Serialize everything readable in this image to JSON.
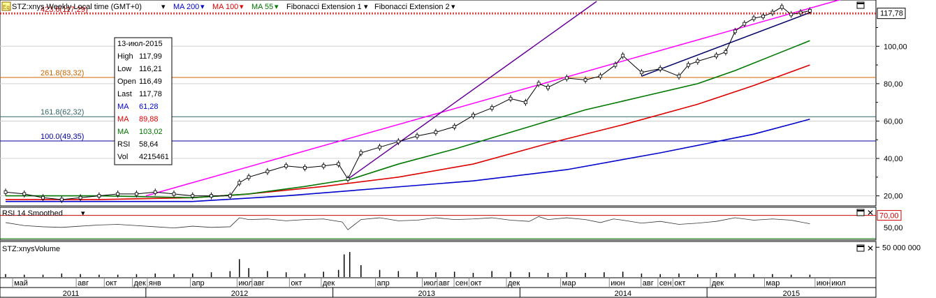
{
  "header": {
    "symbol_icon": "Eq",
    "symbol": "STZ:xnys Weekly Local time (GMT+0)",
    "ma200_label": "MA 200",
    "ma100_label": "MA 100",
    "ma55_label": "MA 55",
    "fib1_label": "Fibonacci Extension 1",
    "fib2_label": "Fibonacci Extension 2"
  },
  "colors": {
    "price": "#000000",
    "ma200": "#0000cc",
    "ma100": "#dd0000",
    "ma55": "#007700",
    "fib_line": "#ff00ff",
    "trend_purple": "#660099",
    "trend_navy": "#000066",
    "current_price_line": "#cc0000",
    "fib_423": "#cc0000",
    "fib_261": "#cc6600",
    "fib_161": "#336666",
    "fib_100": "#000099"
  },
  "tooltip": {
    "date": "13-июл-2015",
    "rows": [
      {
        "label": "High",
        "value": "117,99",
        "color": "#000000"
      },
      {
        "label": "Low",
        "value": "116,21",
        "color": "#000000"
      },
      {
        "label": "Open",
        "value": "116,49",
        "color": "#000000"
      },
      {
        "label": "Last",
        "value": "117,78",
        "color": "#000000"
      },
      {
        "label": "MA",
        "value": "61,28",
        "color": "#0000cc"
      },
      {
        "label": "MA",
        "value": "89,88",
        "color": "#dd0000"
      },
      {
        "label": "MA",
        "value": "103,02",
        "color": "#007700"
      },
      {
        "label": "RSI",
        "value": "58,64",
        "color": "#000000"
      },
      {
        "label": "Vol",
        "value": "4215461",
        "color": "#000000"
      }
    ]
  },
  "fib_levels": [
    {
      "label": "423.6(117,29)",
      "value": 117.29,
      "color": "#cc0000"
    },
    {
      "label": "261.8(83,32)",
      "value": 83.32,
      "color": "#cc6600"
    },
    {
      "label": "161.8(62,32)",
      "value": 62.32,
      "color": "#336666"
    },
    {
      "label": "100.0(49,35)",
      "value": 49.35,
      "color": "#000099"
    }
  ],
  "current_price_label": "117,78",
  "rsi_panel": {
    "title": "RSI 14 Smoothed",
    "level_label": "70,00",
    "mid_label": "50,00"
  },
  "volume_panel": {
    "title": "STZ:xnysVolume",
    "tick_label": "50 000 000"
  },
  "chart_data": {
    "type": "line",
    "price_axis": {
      "min": 15,
      "max": 124,
      "ticks": [
        20,
        40,
        60,
        80,
        100
      ],
      "tick_labels": [
        "20,00",
        "40,00",
        "60,00",
        "80,00",
        "100,00"
      ]
    },
    "time_axis": {
      "months": [
        "май",
        "авг",
        "окт",
        "дек",
        "янв",
        "апр",
        "июл",
        "авг",
        "окт",
        "дек",
        "апр",
        "июл",
        "авг",
        "сен",
        "окт",
        "дек",
        "мар",
        "июн",
        "авг",
        "сен",
        "окт",
        "дек",
        "мар",
        "июн",
        "июл"
      ],
      "month_pos": [
        0.6,
        4.0,
        5.5,
        7.0,
        7.8,
        10.1,
        12.6,
        13.4,
        15.4,
        17.1,
        20.0,
        22.5,
        23.3,
        24.2,
        25.0,
        27.0,
        29.9,
        32.5,
        34.2,
        35.1,
        35.9,
        37.9,
        40.8,
        43.5,
        44.3
      ],
      "years": [
        "2011",
        "2012",
        "2013",
        "2014",
        "2015"
      ],
      "year_pos": [
        3.5,
        12.5,
        22.5,
        33.0,
        42.0
      ],
      "year_dividers": [
        7.5,
        17.5,
        27.5,
        37.5
      ],
      "range": [
        0,
        45
      ]
    },
    "price_series": {
      "x": [
        0,
        1,
        2,
        3,
        4,
        5,
        6,
        7,
        8,
        9,
        10,
        11,
        12,
        12.5,
        13,
        14,
        15,
        16,
        17,
        17.8,
        18.3,
        19,
        20,
        21,
        22,
        23,
        24,
        25,
        26,
        27,
        27.8,
        28.5,
        29,
        30,
        31,
        31.8,
        32.6,
        33,
        34,
        35,
        36,
        36.5,
        37,
        38,
        38.5,
        39,
        39.5,
        40,
        40.5,
        41,
        41.5,
        42,
        42.5,
        43
      ],
      "y": [
        22,
        21,
        19,
        18,
        19,
        20,
        21,
        21,
        22,
        21,
        20,
        20,
        20,
        27,
        30,
        33,
        36,
        35,
        36,
        37,
        29,
        43,
        46,
        49,
        52,
        54,
        57,
        63,
        67,
        72,
        70,
        80,
        78,
        83,
        82,
        84,
        90,
        95,
        86,
        88,
        84,
        90,
        92,
        95,
        97,
        108,
        112,
        115,
        116,
        118,
        121,
        117,
        118,
        119
      ]
    },
    "ma_series": [
      {
        "name": "MA 200",
        "color": "#0000cc",
        "x": [
          0,
          5,
          10,
          15,
          20,
          25,
          30,
          35,
          40,
          43
        ],
        "y": [
          17,
          17,
          17,
          20,
          24,
          28,
          34,
          43,
          53,
          61
        ]
      },
      {
        "name": "MA 100",
        "color": "#dd0000",
        "x": [
          0,
          5,
          10,
          13,
          17,
          21,
          25,
          29,
          33,
          37,
          40,
          43
        ],
        "y": [
          18,
          18,
          19,
          21,
          25,
          30,
          37,
          48,
          58,
          69,
          79,
          90
        ]
      },
      {
        "name": "MA 55",
        "color": "#007700",
        "x": [
          0,
          5,
          10,
          13,
          16,
          18.5,
          21,
          24,
          28,
          31,
          34,
          37,
          39,
          41,
          43
        ],
        "y": [
          20,
          20,
          19,
          21,
          25,
          29,
          37,
          45,
          57,
          66,
          73,
          80,
          87,
          95,
          103
        ]
      }
    ],
    "rsi": {
      "range": [
        30,
        80
      ],
      "level": 70,
      "mid": 50,
      "x": [
        0,
        1,
        2,
        3,
        4,
        5,
        6,
        7,
        8,
        9,
        10,
        11,
        12,
        12.5,
        13,
        14,
        15,
        16,
        17,
        18,
        18.3,
        19,
        20,
        21,
        22,
        23,
        24,
        25,
        26,
        27,
        28,
        28.5,
        29,
        30,
        31,
        31.8,
        32.5,
        33,
        34,
        35,
        36,
        37,
        38,
        39,
        40,
        41,
        42,
        43
      ],
      "y": [
        58,
        53,
        51,
        50,
        52,
        54,
        55,
        53,
        51,
        49,
        52,
        50,
        51,
        66,
        63,
        64,
        61,
        63,
        64,
        59,
        46,
        63,
        66,
        61,
        62,
        66,
        63,
        64,
        66,
        62,
        60,
        68,
        63,
        66,
        63,
        58,
        64,
        62,
        57,
        60,
        55,
        57,
        60,
        66,
        62,
        64,
        62,
        56
      ]
    },
    "volume": {
      "x": [
        0,
        1,
        2,
        3,
        4,
        5,
        6,
        7,
        8,
        9,
        10,
        11,
        12,
        12.5,
        13,
        14,
        15,
        16,
        17,
        17.8,
        18.1,
        18.4,
        19,
        20,
        21,
        22,
        23,
        24,
        25,
        26,
        27,
        28,
        29,
        30,
        31,
        32,
        33,
        34,
        35,
        36,
        37,
        38,
        39,
        40,
        41,
        42,
        43
      ],
      "y": [
        5,
        4,
        4,
        6,
        5,
        4,
        4,
        5,
        6,
        5,
        6,
        8,
        10,
        30,
        15,
        10,
        8,
        6,
        9,
        12,
        38,
        42,
        20,
        12,
        10,
        9,
        8,
        9,
        7,
        10,
        9,
        8,
        7,
        8,
        7,
        8,
        9,
        6,
        5,
        6,
        5,
        7,
        6,
        5,
        5,
        4,
        4
      ],
      "max": 55
    }
  }
}
